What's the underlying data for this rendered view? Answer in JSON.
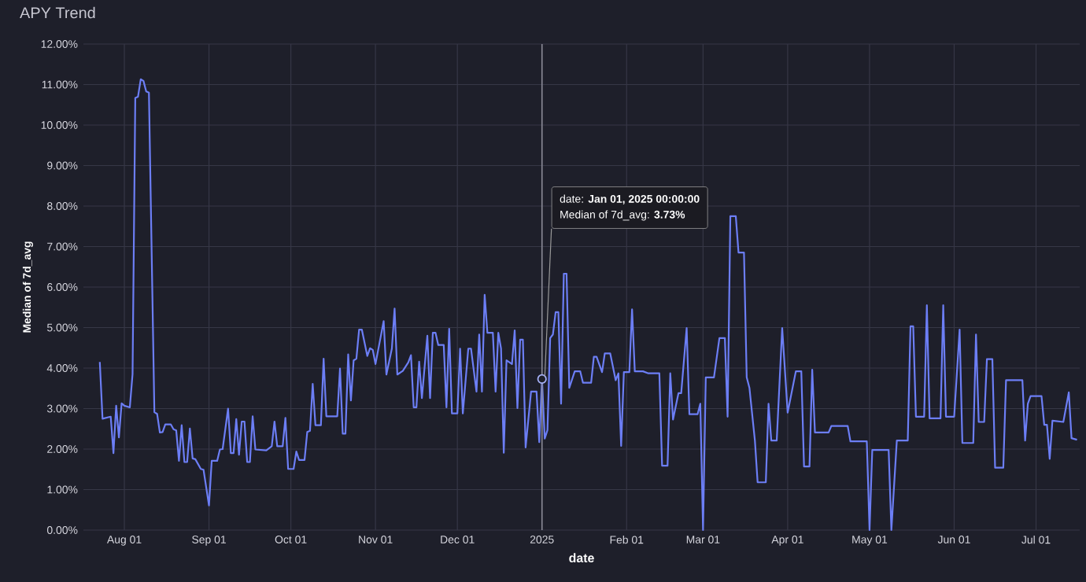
{
  "chart_data": {
    "type": "line",
    "title": "APY Trend",
    "xlabel": "date",
    "ylabel": "Median of 7d_avg",
    "x": [
      "2024-07-23",
      "2024-07-24",
      "2024-07-27",
      "2024-07-28",
      "2024-07-29",
      "2024-07-30",
      "2024-07-31",
      "2024-08-01",
      "2024-08-03",
      "2024-08-04",
      "2024-08-05",
      "2024-08-06",
      "2024-08-07",
      "2024-08-08",
      "2024-08-09",
      "2024-08-10",
      "2024-08-12",
      "2024-08-13",
      "2024-08-14",
      "2024-08-15",
      "2024-08-16",
      "2024-08-18",
      "2024-08-19",
      "2024-08-20",
      "2024-08-21",
      "2024-08-22",
      "2024-08-23",
      "2024-08-24",
      "2024-08-25",
      "2024-08-26",
      "2024-08-27",
      "2024-08-29",
      "2024-08-30",
      "2024-09-01",
      "2024-09-02",
      "2024-09-04",
      "2024-09-05",
      "2024-09-06",
      "2024-09-08",
      "2024-09-09",
      "2024-09-10",
      "2024-09-11",
      "2024-09-12",
      "2024-09-13",
      "2024-09-14",
      "2024-09-15",
      "2024-09-16",
      "2024-09-17",
      "2024-09-18",
      "2024-09-22",
      "2024-09-24",
      "2024-09-25",
      "2024-09-26",
      "2024-09-28",
      "2024-09-29",
      "2024-09-30",
      "2024-10-02",
      "2024-10-03",
      "2024-10-04",
      "2024-10-06",
      "2024-10-07",
      "2024-10-08",
      "2024-10-09",
      "2024-10-10",
      "2024-10-12",
      "2024-10-13",
      "2024-10-14",
      "2024-10-18",
      "2024-10-19",
      "2024-10-20",
      "2024-10-21",
      "2024-10-22",
      "2024-10-23",
      "2024-10-24",
      "2024-10-25",
      "2024-10-26",
      "2024-10-27",
      "2024-10-29",
      "2024-10-30",
      "2024-10-31",
      "2024-11-01",
      "2024-11-04",
      "2024-11-05",
      "2024-11-07",
      "2024-11-08",
      "2024-11-09",
      "2024-11-11",
      "2024-11-13",
      "2024-11-14",
      "2024-11-15",
      "2024-11-16",
      "2024-11-17",
      "2024-11-18",
      "2024-11-20",
      "2024-11-21",
      "2024-11-22",
      "2024-11-23",
      "2024-11-24",
      "2024-11-26",
      "2024-11-27",
      "2024-11-28",
      "2024-11-29",
      "2024-12-01",
      "2024-12-02",
      "2024-12-03",
      "2024-12-05",
      "2024-12-06",
      "2024-12-08",
      "2024-12-09",
      "2024-12-10",
      "2024-12-11",
      "2024-12-12",
      "2024-12-14",
      "2024-12-15",
      "2024-12-16",
      "2024-12-17",
      "2024-12-18",
      "2024-12-19",
      "2024-12-21",
      "2024-12-22",
      "2024-12-23",
      "2024-12-24",
      "2024-12-25",
      "2024-12-26",
      "2024-12-28",
      "2024-12-30",
      "2024-12-31",
      "2025-01-01",
      "2025-01-02",
      "2025-01-03",
      "2025-01-04",
      "2025-01-05",
      "2025-01-06",
      "2025-01-07",
      "2025-01-08",
      "2025-01-09",
      "2025-01-10",
      "2025-01-11",
      "2025-01-13",
      "2025-01-15",
      "2025-01-16",
      "2025-01-19",
      "2025-01-20",
      "2025-01-21",
      "2025-01-23",
      "2025-01-24",
      "2025-01-26",
      "2025-01-28",
      "2025-01-29",
      "2025-01-30",
      "2025-01-31",
      "2025-02-02",
      "2025-02-03",
      "2025-02-04",
      "2025-02-07",
      "2025-02-09",
      "2025-02-13",
      "2025-02-14",
      "2025-02-16",
      "2025-02-17",
      "2025-02-18",
      "2025-02-20",
      "2025-02-21",
      "2025-02-23",
      "2025-02-24",
      "2025-02-27",
      "2025-02-28",
      "2025-03-01",
      "2025-03-02",
      "2025-03-05",
      "2025-03-07",
      "2025-03-09",
      "2025-03-10",
      "2025-03-11",
      "2025-03-13",
      "2025-03-14",
      "2025-03-16",
      "2025-03-17",
      "2025-03-18",
      "2025-03-20",
      "2025-03-21",
      "2025-03-24",
      "2025-03-25",
      "2025-03-26",
      "2025-03-28",
      "2025-03-30",
      "2025-04-01",
      "2025-04-04",
      "2025-04-06",
      "2025-04-07",
      "2025-04-09",
      "2025-04-10",
      "2025-04-11",
      "2025-04-16",
      "2025-04-17",
      "2025-04-23",
      "2025-04-24",
      "2025-04-30",
      "2025-05-01",
      "2025-05-02",
      "2025-05-08",
      "2025-05-09",
      "2025-05-11",
      "2025-05-15",
      "2025-05-16",
      "2025-05-17",
      "2025-05-18",
      "2025-05-21",
      "2025-05-22",
      "2025-05-23",
      "2025-05-27",
      "2025-05-28",
      "2025-05-29",
      "2025-06-01",
      "2025-06-03",
      "2025-06-04",
      "2025-06-08",
      "2025-06-09",
      "2025-06-10",
      "2025-06-12",
      "2025-06-13",
      "2025-06-15",
      "2025-06-16",
      "2025-06-19",
      "2025-06-20",
      "2025-06-26",
      "2025-06-27",
      "2025-06-28",
      "2025-06-29",
      "2025-07-03",
      "2025-07-04",
      "2025-07-05",
      "2025-07-06",
      "2025-07-07",
      "2025-07-11",
      "2025-07-13",
      "2025-07-14",
      "2025-07-16"
    ],
    "series": [
      {
        "color": "#6c7ef5",
        "values": [
          4.15,
          2.75,
          2.8,
          1.9,
          3.07,
          2.29,
          3.13,
          3.07,
          3.03,
          3.85,
          10.67,
          10.7,
          11.13,
          11.09,
          10.83,
          10.8,
          2.91,
          2.87,
          2.41,
          2.42,
          2.61,
          2.61,
          2.49,
          2.46,
          1.71,
          2.59,
          1.68,
          1.68,
          2.51,
          1.77,
          1.75,
          1.51,
          1.49,
          0.61,
          1.71,
          1.71,
          1.99,
          2.0,
          3.0,
          1.9,
          1.9,
          2.74,
          1.86,
          2.68,
          2.68,
          1.68,
          1.68,
          2.81,
          1.99,
          1.97,
          2.07,
          2.68,
          2.07,
          2.07,
          2.77,
          1.51,
          1.51,
          1.94,
          1.73,
          1.73,
          2.42,
          2.45,
          3.61,
          2.59,
          2.59,
          4.23,
          2.81,
          2.81,
          3.99,
          2.38,
          2.38,
          4.34,
          3.2,
          4.19,
          4.23,
          4.95,
          4.95,
          4.3,
          4.49,
          4.45,
          4.1,
          5.16,
          3.84,
          4.48,
          5.47,
          3.84,
          3.93,
          4.14,
          4.32,
          3.03,
          3.03,
          4.16,
          3.26,
          4.8,
          3.26,
          4.87,
          4.87,
          4.57,
          4.57,
          3.03,
          4.97,
          2.88,
          2.88,
          4.48,
          2.88,
          4.48,
          4.48,
          3.42,
          4.83,
          3.42,
          5.81,
          4.87,
          4.87,
          3.42,
          4.87,
          4.48,
          1.91,
          4.19,
          4.1,
          4.93,
          3.01,
          4.7,
          4.7,
          2.04,
          3.42,
          3.42,
          2.17,
          3.73,
          2.26,
          2.47,
          4.74,
          4.83,
          5.38,
          5.38,
          3.12,
          6.33,
          6.33,
          3.51,
          3.92,
          3.92,
          3.64,
          3.64,
          4.28,
          4.28,
          3.9,
          4.36,
          4.36,
          3.7,
          3.87,
          2.08,
          3.9,
          3.9,
          5.45,
          3.92,
          3.92,
          3.87,
          3.87,
          1.59,
          1.59,
          3.87,
          2.73,
          3.38,
          3.38,
          4.99,
          2.86,
          2.86,
          3.12,
          0.0,
          3.77,
          3.77,
          4.74,
          4.74,
          2.8,
          7.75,
          7.75,
          6.85,
          6.85,
          3.77,
          3.51,
          2.21,
          1.18,
          1.18,
          3.12,
          2.21,
          2.21,
          4.99,
          2.9,
          3.92,
          3.92,
          1.57,
          1.57,
          3.96,
          2.41,
          2.41,
          2.57,
          2.57,
          2.19,
          2.19,
          0.0,
          1.98,
          1.98,
          0.0,
          2.21,
          2.21,
          5.03,
          5.03,
          2.8,
          2.8,
          5.55,
          2.76,
          2.76,
          5.55,
          2.8,
          2.8,
          4.95,
          2.15,
          2.15,
          4.83,
          2.67,
          2.67,
          4.22,
          4.22,
          1.54,
          1.54,
          3.7,
          3.7,
          2.21,
          3.12,
          3.31,
          3.31,
          2.6,
          2.6,
          1.76,
          2.7,
          2.67,
          3.4,
          2.27,
          2.23
        ]
      }
    ],
    "xlim": [
      "2024-07-17",
      "2025-07-17"
    ],
    "xticks": [
      {
        "value": "2024-08-01",
        "label": "Aug 01"
      },
      {
        "value": "2024-09-01",
        "label": "Sep 01"
      },
      {
        "value": "2024-10-01",
        "label": "Oct 01"
      },
      {
        "value": "2024-11-01",
        "label": "Nov 01"
      },
      {
        "value": "2024-12-01",
        "label": "Dec 01"
      },
      {
        "value": "2025-01-01",
        "label": "2025"
      },
      {
        "value": "2025-02-01",
        "label": "Feb 01"
      },
      {
        "value": "2025-03-01",
        "label": "Mar 01"
      },
      {
        "value": "2025-04-01",
        "label": "Apr 01"
      },
      {
        "value": "2025-05-01",
        "label": "May 01"
      },
      {
        "value": "2025-06-01",
        "label": "Jun 01"
      },
      {
        "value": "2025-07-01",
        "label": "Jul 01"
      }
    ],
    "ylim": [
      0,
      12
    ],
    "yticks": [
      {
        "value": 0,
        "label": "0.00%"
      },
      {
        "value": 1,
        "label": "1.00%"
      },
      {
        "value": 2,
        "label": "2.00%"
      },
      {
        "value": 3,
        "label": "3.00%"
      },
      {
        "value": 4,
        "label": "4.00%"
      },
      {
        "value": 5,
        "label": "5.00%"
      },
      {
        "value": 6,
        "label": "6.00%"
      },
      {
        "value": 7,
        "label": "7.00%"
      },
      {
        "value": 8,
        "label": "8.00%"
      },
      {
        "value": 9,
        "label": "9.00%"
      },
      {
        "value": 10,
        "label": "10.00%"
      },
      {
        "value": 11,
        "label": "11.00%"
      },
      {
        "value": 12,
        "label": "12.00%"
      }
    ],
    "grid": true,
    "ref_lines": [
      {
        "axis": "x",
        "value": "2025-01-01",
        "color": "#8a8a96"
      }
    ],
    "annotations": [
      "date: **Jan 01, 2025 00:00:00**",
      {
        "text": "Median of 7d_avg: **3.73%**",
        "x": "2025-01-01",
        "y": 3.73
      }
    ]
  }
}
